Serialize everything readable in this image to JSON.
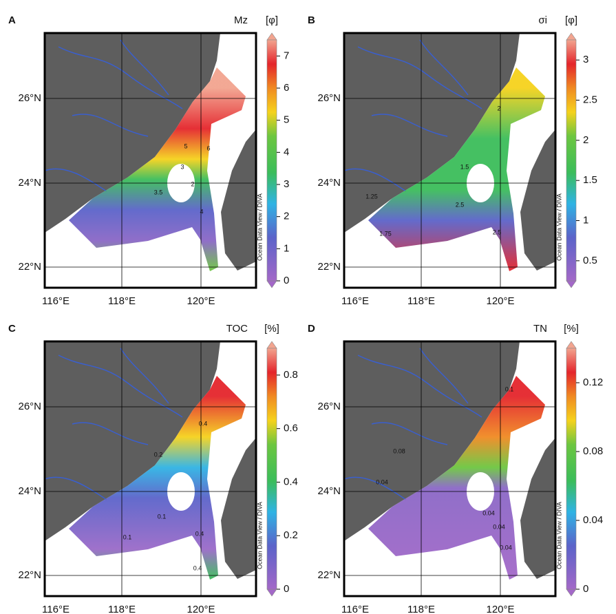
{
  "panels": [
    {
      "letter": "A",
      "variable": "Mz",
      "unit": "[φ]",
      "colorbar": {
        "range": [
          0,
          7.5
        ],
        "ticks": [
          0,
          1,
          2,
          3,
          4,
          5,
          6,
          7
        ]
      },
      "lon_ticks": [
        "116°E",
        "118°E",
        "120°E"
      ],
      "lat_ticks": [
        "22°N",
        "24°N",
        "26°N"
      ],
      "credit": "Ocean Data View / DIVA",
      "contour_labels": [
        "5",
        "3",
        "2",
        "4",
        "6",
        "3.5"
      ]
    },
    {
      "letter": "B",
      "variable": "σi",
      "unit": "[φ]",
      "colorbar": {
        "range": [
          0.25,
          3.25
        ],
        "ticks": [
          0.5,
          1,
          1.5,
          2,
          2.5,
          3
        ]
      },
      "lon_ticks": [
        "116°E",
        "118°E",
        "120°E"
      ],
      "lat_ticks": [
        "22°N",
        "24°N",
        "26°N"
      ],
      "credit": "Ocean Data View / DIVA",
      "contour_labels": [
        "2",
        "1.25",
        "1.75",
        "2.5",
        "1.5",
        "2.5"
      ]
    },
    {
      "letter": "C",
      "variable": "TOC",
      "unit": "[%]",
      "colorbar": {
        "range": [
          0,
          0.9
        ],
        "ticks": [
          0,
          0.2,
          0.4,
          0.6,
          0.8
        ]
      },
      "lon_ticks": [
        "116°E",
        "118°E",
        "120°E"
      ],
      "lat_ticks": [
        "22°N",
        "24°N",
        "26°N"
      ],
      "credit": "Ocean Data View / DIVA",
      "contour_labels": [
        "0.4",
        "0.2",
        "0.1",
        "0.4",
        "0.1",
        "0.4"
      ]
    },
    {
      "letter": "D",
      "variable": "TN",
      "unit": "[%]",
      "colorbar": {
        "range": [
          0,
          0.14
        ],
        "ticks": [
          0,
          0.04,
          0.08,
          0.12
        ]
      },
      "lon_ticks": [
        "116°E",
        "118°E",
        "120°E"
      ],
      "lat_ticks": [
        "22°N",
        "24°N",
        "26°N"
      ],
      "credit": "Ocean Data View / DIVA",
      "contour_labels": [
        "0.1",
        "0.04",
        "0.08",
        "0.04",
        "0.04",
        "0.04"
      ]
    }
  ]
}
